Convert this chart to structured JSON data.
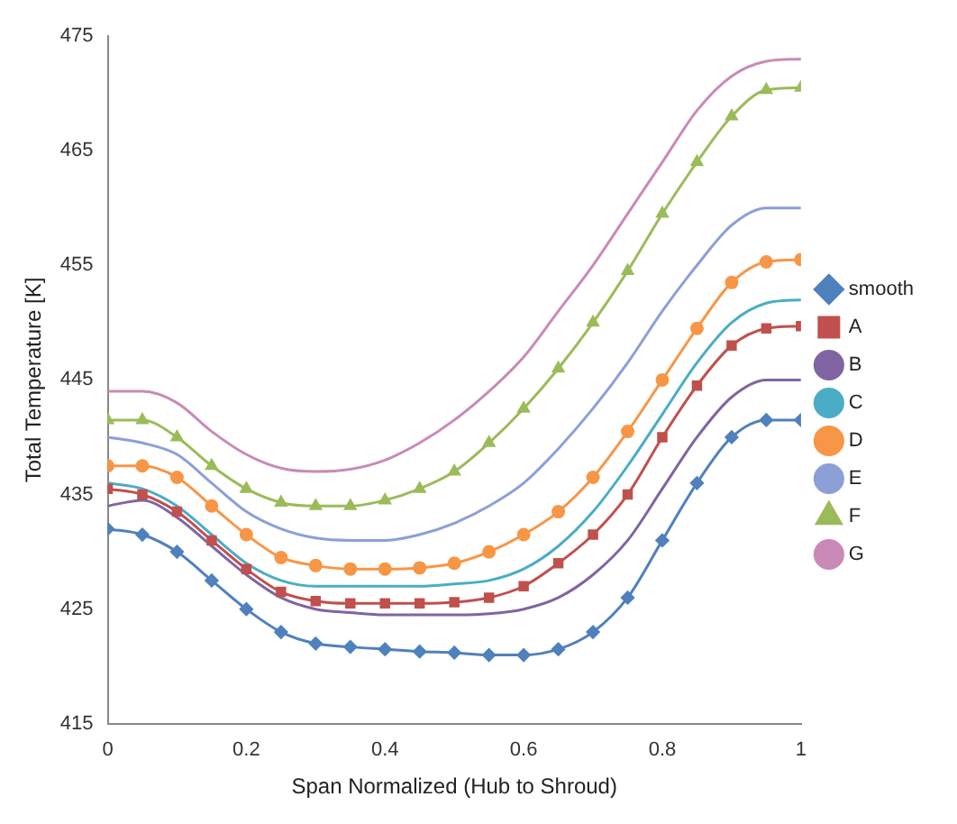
{
  "chart_data": {
    "type": "line",
    "xlabel": "Span Normalized (Hub to Shroud)",
    "ylabel": "Total Temperature [K]",
    "x": [
      0,
      0.05,
      0.1,
      0.15,
      0.2,
      0.25,
      0.3,
      0.35,
      0.4,
      0.45,
      0.5,
      0.55,
      0.6,
      0.65,
      0.7,
      0.75,
      0.8,
      0.85,
      0.9,
      0.95,
      1
    ],
    "xlim": [
      0,
      1
    ],
    "xticks": [
      0,
      0.2,
      0.4,
      0.6,
      0.8,
      1
    ],
    "ylim": [
      415,
      475
    ],
    "yticks": [
      415,
      425,
      435,
      445,
      455,
      465,
      475
    ],
    "grid": false,
    "legend": "right",
    "series": [
      {
        "name": "smooth",
        "color": "#4f81bd",
        "marker": "diamond",
        "values": [
          432,
          431.5,
          430,
          427.5,
          425,
          423,
          422,
          421.7,
          421.5,
          421.3,
          421.2,
          421,
          421,
          421.5,
          423,
          426,
          431,
          436,
          440,
          441.5,
          441.5
        ]
      },
      {
        "name": "A",
        "color": "#c0504d",
        "marker": "square",
        "values": [
          435.5,
          435,
          433.5,
          431,
          428.5,
          426.5,
          425.7,
          425.5,
          425.5,
          425.5,
          425.6,
          426,
          427,
          429,
          431.5,
          435,
          440,
          444.5,
          448,
          449.5,
          449.7
        ]
      },
      {
        "name": "B",
        "color": "#8064a2",
        "marker": "none",
        "values": [
          434,
          434.5,
          433,
          430.5,
          428,
          426,
          425,
          424.7,
          424.5,
          424.5,
          424.5,
          424.6,
          425,
          426,
          428,
          431,
          435.5,
          440,
          443.5,
          445,
          445
        ]
      },
      {
        "name": "C",
        "color": "#4bacc6",
        "marker": "none",
        "values": [
          436,
          435.5,
          434,
          431.5,
          429,
          427.5,
          427,
          427,
          427,
          427,
          427.2,
          427.5,
          428.5,
          430.5,
          433.5,
          437.5,
          442,
          446.5,
          450,
          451.7,
          452
        ]
      },
      {
        "name": "D",
        "color": "#f79646",
        "marker": "circle",
        "values": [
          437.5,
          437.5,
          436.5,
          434,
          431.5,
          429.5,
          428.8,
          428.5,
          428.5,
          428.6,
          429,
          430,
          431.5,
          433.5,
          436.5,
          440.5,
          445,
          449.5,
          453.5,
          455.3,
          455.5
        ]
      },
      {
        "name": "E",
        "color": "#8c9fd6",
        "marker": "none",
        "values": [
          440,
          439.5,
          438.5,
          436,
          433.5,
          432,
          431.2,
          431,
          431,
          431.5,
          432.5,
          434,
          436,
          439,
          442.5,
          446.5,
          451,
          455,
          458.5,
          460,
          460
        ]
      },
      {
        "name": "F",
        "color": "#9bbb59",
        "marker": "triangle",
        "values": [
          441.5,
          441.5,
          440,
          437.5,
          435.5,
          434.3,
          434,
          434,
          434.5,
          435.5,
          437,
          439.5,
          442.5,
          446,
          450,
          454.5,
          459.5,
          464,
          468,
          470.3,
          470.5
        ]
      },
      {
        "name": "G",
        "color": "#c98ab8",
        "marker": "none",
        "values": [
          444,
          444,
          443,
          440.5,
          438.5,
          437.3,
          437,
          437.2,
          438,
          439.5,
          441.5,
          444,
          447,
          451,
          455,
          459.5,
          464,
          468.5,
          471.5,
          472.8,
          473
        ]
      }
    ]
  }
}
